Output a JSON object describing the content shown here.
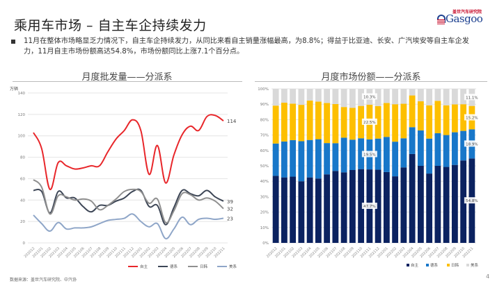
{
  "header": {
    "title": "乘用车市场 – 自主车企持续发力",
    "logo_cn": "盖世汽车研究院",
    "logo_en": "Gasgoo"
  },
  "summary": "11月在整体市场略显乏力情况下，自主车企持续发力，从同比来看自主销量涨幅最高，为8.8%；得益于比亚迪、长安、广汽埃安等自主车企发力，11月自主市场份额高达54.8%，市场份额同比上涨7.1个百分点。",
  "footer": {
    "source": "数据来源：盖世汽车研究院、中汽协",
    "page_number": "4"
  },
  "chart_data": [
    {
      "type": "line",
      "title": "月度批发量——分派系",
      "ylabel": "万辆",
      "xlabel": "",
      "ylim": [
        0,
        140
      ],
      "yticks": [
        0,
        20,
        40,
        60,
        80,
        100,
        120,
        140
      ],
      "grid": true,
      "legend_position": "bottom-right",
      "categories": [
        "202012",
        "202101",
        "202102",
        "202103",
        "202104",
        "202105",
        "202106",
        "202107",
        "202108",
        "202109",
        "202110",
        "202111",
        "202112",
        "202201",
        "202202",
        "202203",
        "202204",
        "202205",
        "202206",
        "202207",
        "202208",
        "202209",
        "202210",
        "202211"
      ],
      "series": [
        {
          "name": "自主",
          "color": "#e8262a",
          "values": [
            103,
            88,
            50,
            75,
            72,
            69,
            70,
            72,
            72,
            85,
            97,
            105,
            115,
            105,
            64,
            91,
            56,
            82,
            101,
            109,
            105,
            118,
            119,
            114
          ],
          "end_label": "114"
        },
        {
          "name": "德系",
          "color": "#3d4656",
          "values": [
            49,
            48,
            28,
            48,
            42,
            42,
            34,
            29,
            35,
            35,
            39,
            42,
            48,
            49,
            34,
            35,
            17,
            33,
            49,
            46,
            44,
            49,
            43,
            39
          ],
          "end_label": "39"
        },
        {
          "name": "日韩",
          "color": "#8f8f8f",
          "values": [
            59,
            52,
            27,
            44,
            43,
            40,
            41,
            39,
            31,
            35,
            41,
            48,
            50,
            48,
            37,
            41,
            19,
            30,
            46,
            45,
            40,
            42,
            39,
            32
          ],
          "end_label": "32"
        },
        {
          "name": "美系",
          "color": "#8fa6c8",
          "values": [
            26,
            18,
            11,
            19,
            13,
            14,
            14,
            15,
            18,
            21,
            22,
            23,
            27,
            20,
            15,
            18,
            4,
            13,
            24,
            17,
            22,
            23,
            22,
            23
          ],
          "end_label": "23"
        }
      ]
    },
    {
      "type": "bar",
      "stacked": true,
      "title": "月度市场份额——分派系",
      "xlabel": "",
      "ylabel": "",
      "ylim": [
        0,
        100
      ],
      "yticks": [
        "0%",
        "10%",
        "20%",
        "30%",
        "40%",
        "50%",
        "60%",
        "70%",
        "80%",
        "90%",
        "100%"
      ],
      "grid": true,
      "legend_position": "bottom-right",
      "categories": [
        "202012",
        "202101",
        "202102",
        "202103",
        "202104",
        "202105",
        "202106",
        "202107",
        "202108",
        "202109",
        "202110",
        "202111",
        "202112",
        "202201",
        "202202",
        "202203",
        "202204",
        "202205",
        "202206",
        "202207",
        "202208",
        "202209",
        "202210",
        "202211"
      ],
      "series": [
        {
          "name": "自主",
          "color": "#0b2260",
          "values": [
            43.5,
            42.5,
            43.0,
            40.0,
            42.5,
            41.8,
            44.5,
            46.7,
            45.8,
            47.3,
            47.9,
            47.7,
            47.5,
            46.0,
            43.2,
            49.0,
            57.7,
            50.0,
            45.0,
            50.0,
            49.3,
            50.6,
            53.5,
            54.8
          ]
        },
        {
          "name": "德系",
          "color": "#1877c9",
          "values": [
            21.0,
            23.3,
            23.7,
            26.0,
            24.3,
            25.5,
            20.3,
            18.0,
            22.5,
            19.7,
            20.0,
            19.5,
            20.2,
            22.8,
            22.5,
            18.9,
            17.4,
            23.0,
            22.7,
            21.2,
            20.7,
            21.2,
            19.2,
            18.9
          ]
        },
        {
          "name": "日韩",
          "color": "#fdbf00",
          "values": [
            24.6,
            25.2,
            23.7,
            23.6,
            25.6,
            24.4,
            26.0,
            25.4,
            19.9,
            20.7,
            21.0,
            22.5,
            21.1,
            22.0,
            24.3,
            22.4,
            20.6,
            18.9,
            21.6,
            21.0,
            19.3,
            18.1,
            17.3,
            15.2
          ]
        },
        {
          "name": "美系",
          "color": "#d9d9d9",
          "values": [
            10.9,
            9.0,
            9.6,
            10.4,
            7.6,
            8.3,
            9.2,
            9.9,
            11.8,
            12.3,
            11.1,
            10.3,
            11.2,
            9.2,
            10.0,
            9.7,
            4.3,
            8.1,
            10.7,
            7.8,
            10.7,
            10.1,
            10.0,
            11.1
          ]
        }
      ],
      "data_labels": [
        {
          "category": "202111",
          "series": "自主",
          "text": "47.7%"
        },
        {
          "category": "202111",
          "series": "德系",
          "text": "19.5%"
        },
        {
          "category": "202111",
          "series": "日韩",
          "text": "22.5%"
        },
        {
          "category": "202111",
          "series": "美系",
          "text": "10.3%"
        },
        {
          "category": "202211",
          "series": "自主",
          "text": "54.8%"
        },
        {
          "category": "202211",
          "series": "德系",
          "text": "18.9%"
        },
        {
          "category": "202211",
          "series": "日韩",
          "text": "15.2%"
        },
        {
          "category": "202211",
          "series": "美系",
          "text": "11.1%"
        }
      ]
    }
  ]
}
